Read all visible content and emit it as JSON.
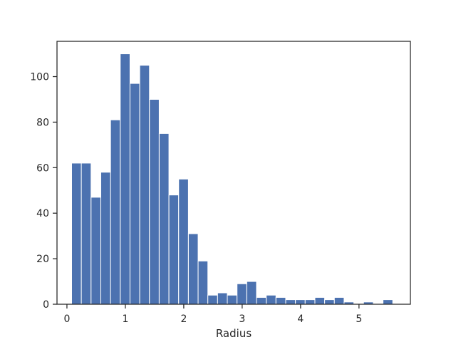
{
  "chart_data": {
    "type": "bar",
    "subtype": "histogram",
    "title": "",
    "xlabel": "Radius",
    "ylabel": "",
    "xlim": [
      -0.17,
      5.88
    ],
    "ylim": [
      0,
      115.5
    ],
    "grid": false,
    "legend": "none",
    "bar_color": "#4c72b0",
    "edge_color": "#ffffff",
    "axis_color": "#262626",
    "xticks": [
      0,
      1,
      2,
      3,
      4,
      5
    ],
    "yticks": [
      0,
      20,
      40,
      60,
      80,
      100
    ],
    "bin_start": 0.08,
    "bin_width": 0.1666,
    "counts": [
      62,
      62,
      47,
      58,
      81,
      110,
      97,
      105,
      90,
      75,
      48,
      55,
      31,
      19,
      4,
      5,
      4,
      9,
      10,
      3,
      4,
      3,
      2,
      2,
      2,
      3,
      2,
      3,
      1,
      0,
      1,
      0,
      2
    ]
  }
}
